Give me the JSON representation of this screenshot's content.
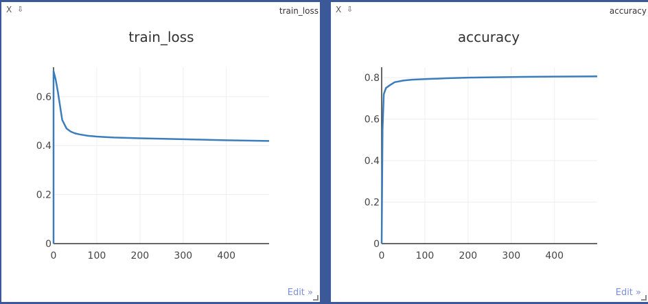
{
  "panes": [
    {
      "name": "train_loss",
      "close_label": "X",
      "download_label": "⇩",
      "edit_label": "Edit »"
    },
    {
      "name": "accuracy",
      "close_label": "X",
      "download_label": "⇩",
      "edit_label": "Edit »"
    }
  ],
  "colors": {
    "line": "#3b7dbc",
    "grid": "#eeeeee",
    "axis": "#333333",
    "frame": "#3b5998"
  },
  "chart_data": [
    {
      "type": "line",
      "title": "train_loss",
      "xlabel": "",
      "ylabel": "",
      "xlim": [
        0,
        499
      ],
      "ylim": [
        0,
        0.72
      ],
      "xticks": [
        0,
        100,
        200,
        300,
        400
      ],
      "yticks": [
        0,
        0.2,
        0.4,
        0.6
      ],
      "ytick_labels": [
        "0",
        "0.2",
        "0.4",
        "0.6"
      ],
      "grid": true,
      "series": [
        {
          "x": [
            0,
            0,
            5,
            10,
            20,
            30,
            40,
            50,
            60,
            80,
            100,
            120,
            140,
            200,
            300,
            400,
            499
          ],
          "y": [
            0,
            0.705,
            0.67,
            0.62,
            0.505,
            0.47,
            0.457,
            0.45,
            0.446,
            0.44,
            0.437,
            0.435,
            0.433,
            0.43,
            0.426,
            0.422,
            0.419
          ]
        }
      ]
    },
    {
      "type": "line",
      "title": "accuracy",
      "xlabel": "",
      "ylabel": "",
      "xlim": [
        0,
        499
      ],
      "ylim": [
        0,
        0.85
      ],
      "xticks": [
        0,
        100,
        200,
        300,
        400
      ],
      "yticks": [
        0,
        0.2,
        0.4,
        0.6,
        0.8
      ],
      "ytick_labels": [
        "0",
        "0.2",
        "0.4",
        "0.6",
        "0.8"
      ],
      "grid": true,
      "series": [
        {
          "x": [
            0,
            2,
            5,
            10,
            20,
            30,
            50,
            70,
            100,
            130,
            150,
            200,
            300,
            400,
            499
          ],
          "y": [
            0,
            0.55,
            0.72,
            0.75,
            0.765,
            0.778,
            0.786,
            0.79,
            0.793,
            0.795,
            0.797,
            0.8,
            0.803,
            0.805,
            0.806
          ]
        }
      ]
    }
  ]
}
